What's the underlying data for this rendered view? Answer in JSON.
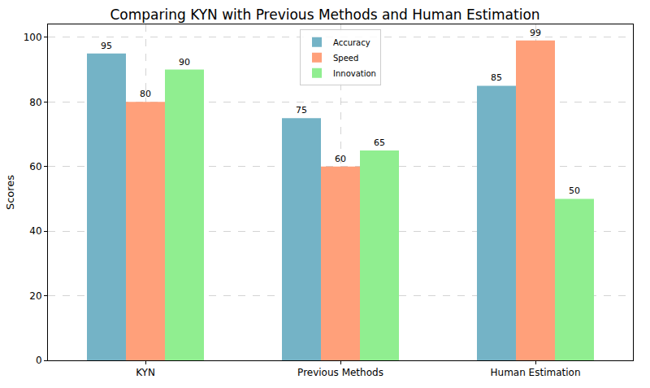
{
  "chart_data": {
    "type": "bar",
    "title": "Comparing KYN with Previous Methods and Human Estimation",
    "y_label": "Scores",
    "categories": [
      "KYN",
      "Previous Methods",
      "Human Estimation"
    ],
    "series": [
      {
        "name": "Accuracy",
        "color": "#74b3c6",
        "values": [
          95,
          75,
          85
        ]
      },
      {
        "name": "Speed",
        "color": "#ffa07a",
        "values": [
          80,
          60,
          99
        ]
      },
      {
        "name": "Innovation",
        "color": "#90ee90",
        "values": [
          90,
          65,
          50
        ]
      }
    ],
    "ylim": [
      0,
      104
    ],
    "yticks": [
      0,
      20,
      40,
      60,
      80,
      100
    ],
    "grid": true,
    "legend": "top",
    "data_labels": true
  }
}
